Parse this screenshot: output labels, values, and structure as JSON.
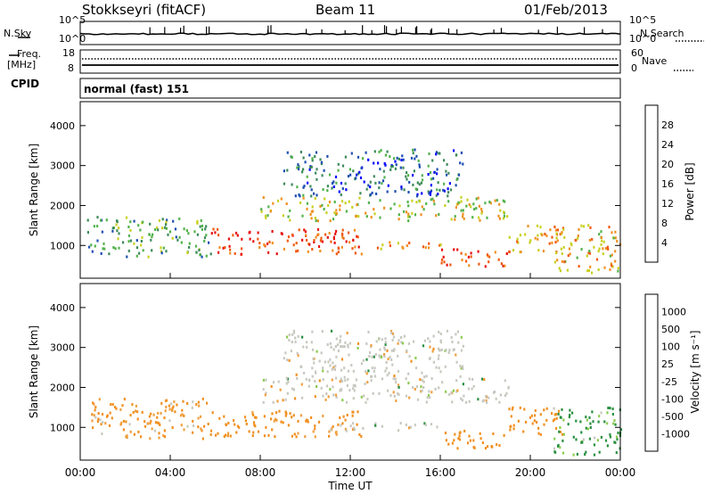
{
  "header": {
    "title": "Stokkseyri (fitACF)",
    "beam": "Beam 11",
    "date": "01/Feb/2013"
  },
  "sky_panel": {
    "label": "N.Sky",
    "right_label": "N.Search",
    "ticks_left": [
      "10^5",
      "10^0"
    ],
    "ticks_right": [
      "10^5",
      "10^0"
    ]
  },
  "freq_panel": {
    "label_line1": "Freq.",
    "label_line2": "[MHz]",
    "right_label": "Nave",
    "ticks_left": [
      "18",
      "8"
    ],
    "ticks_right": [
      "60",
      "0"
    ]
  },
  "cpid": {
    "label": "CPID",
    "mode": "normal (fast) 151"
  },
  "colors": {
    "background": "#ffffff",
    "axes": "#000000",
    "grey_scatter": "#c8c8c0"
  },
  "chart_data": [
    {
      "type": "heatmap",
      "panel": "power",
      "ylabel": "Slant Range [km]",
      "ylim": [
        180,
        4600
      ],
      "yticks": [
        "4000",
        "3000",
        "2000",
        "1000"
      ],
      "xlabel": "Time UT",
      "xlim": [
        "00:00",
        "24:00"
      ],
      "xticks": [
        "00:00",
        "04:00",
        "08:00",
        "12:00",
        "16:00",
        "20:00",
        "00:00"
      ],
      "colorbar": {
        "label": "Power [dB]",
        "ticks": [
          "28",
          "24",
          "20",
          "16",
          "12",
          "8",
          "4"
        ],
        "colors": [
          "#0000ff",
          "#1e4fb0",
          "#3d8a5a",
          "#52b24a",
          "#c8d020",
          "#f09020",
          "#f05a10",
          "#e81010"
        ]
      },
      "echo_regions": [
        {
          "t": [
            0.3,
            5.8
          ],
          "r": [
            700,
            1700
          ],
          "level": 12
        },
        {
          "t": [
            5.8,
            12.5
          ],
          "r": [
            750,
            1400
          ],
          "level": 28
        },
        {
          "t": [
            11.0,
            16.0
          ],
          "r": [
            900,
            1100
          ],
          "level": 24
        },
        {
          "t": [
            16.0,
            19.0
          ],
          "r": [
            450,
            900
          ],
          "level": 26
        },
        {
          "t": [
            19.0,
            21.5
          ],
          "r": [
            800,
            1500
          ],
          "level": 22
        },
        {
          "t": [
            21.0,
            24.0
          ],
          "r": [
            300,
            1500
          ],
          "level": 20
        },
        {
          "t": [
            8.0,
            19.0
          ],
          "r": [
            1600,
            2200
          ],
          "level": 18
        },
        {
          "t": [
            9.0,
            17.0
          ],
          "r": [
            2200,
            3400
          ],
          "level": 8
        }
      ]
    },
    {
      "type": "heatmap",
      "panel": "velocity",
      "ylabel": "Slant Range [km]",
      "ylim": [
        180,
        4600
      ],
      "yticks": [
        "4000",
        "3000",
        "2000",
        "1000"
      ],
      "xlabel": "Time UT",
      "xlim": [
        "00:00",
        "24:00"
      ],
      "xticks": [
        "00:00",
        "04:00",
        "08:00",
        "12:00",
        "16:00",
        "20:00",
        "00:00"
      ],
      "colorbar": {
        "label": "Velocity [m s⁻¹]",
        "ticks": [
          "1000",
          "500",
          "100",
          "25",
          "-25",
          "-100",
          "-500",
          "-1000"
        ],
        "colors": [
          "#e81010",
          "#f05a10",
          "#f09020",
          "#f0a040",
          "#c8c8c0",
          "#8ccc50",
          "#2a9040",
          "#2a5aa0",
          "#1e3ca8"
        ]
      },
      "echo_regions": [
        {
          "t": [
            0.3,
            5.8
          ],
          "r": [
            700,
            1700
          ],
          "velocity": -150
        },
        {
          "t": [
            5.8,
            12.5
          ],
          "r": [
            750,
            1400
          ],
          "velocity": -200
        },
        {
          "t": [
            11.0,
            16.0
          ],
          "r": [
            900,
            1100
          ],
          "velocity": 0
        },
        {
          "t": [
            16.0,
            19.0
          ],
          "r": [
            450,
            900
          ],
          "velocity": -300
        },
        {
          "t": [
            19.0,
            21.5
          ],
          "r": [
            800,
            1500
          ],
          "velocity": -250
        },
        {
          "t": [
            21.0,
            24.0
          ],
          "r": [
            300,
            1500
          ],
          "velocity": 150
        },
        {
          "t": [
            8.0,
            19.0
          ],
          "r": [
            1600,
            2200
          ],
          "velocity": 0
        },
        {
          "t": [
            9.0,
            17.0
          ],
          "r": [
            2200,
            3400
          ],
          "velocity": 0
        }
      ]
    }
  ]
}
